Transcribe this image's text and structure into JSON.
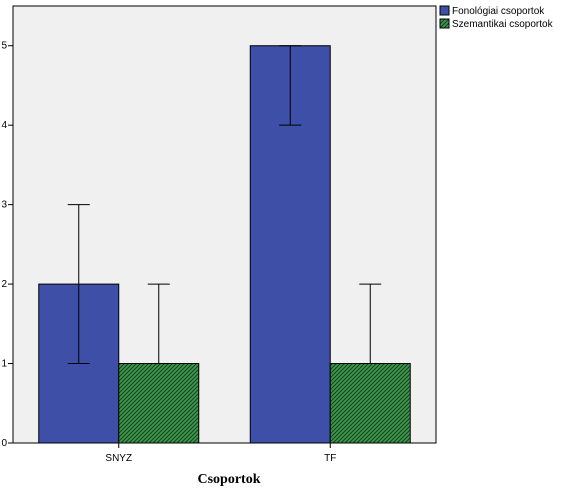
{
  "chart_data": {
    "type": "bar",
    "categories": [
      "SNYZ",
      "TF"
    ],
    "series": [
      {
        "name": "Fonológiai csoportok",
        "values": [
          2,
          5
        ],
        "error_low": [
          1,
          4
        ],
        "error_high": [
          3,
          5
        ],
        "color": "#3d4fa6",
        "pattern": "solid"
      },
      {
        "name": "Szemantikai csoportok",
        "values": [
          1,
          1
        ],
        "error_low": [
          1,
          1
        ],
        "error_high": [
          2,
          2
        ],
        "color": "#3a9a4a",
        "pattern": "diagonal-hatch"
      }
    ],
    "xlabel": "Csoportok",
    "ylabel": "",
    "ylim": [
      0,
      5.5
    ],
    "yticks": [
      0,
      1,
      2,
      3,
      4,
      5
    ],
    "grid": false,
    "legend_position": "top-right",
    "plot_background": "#f0f0f0"
  }
}
